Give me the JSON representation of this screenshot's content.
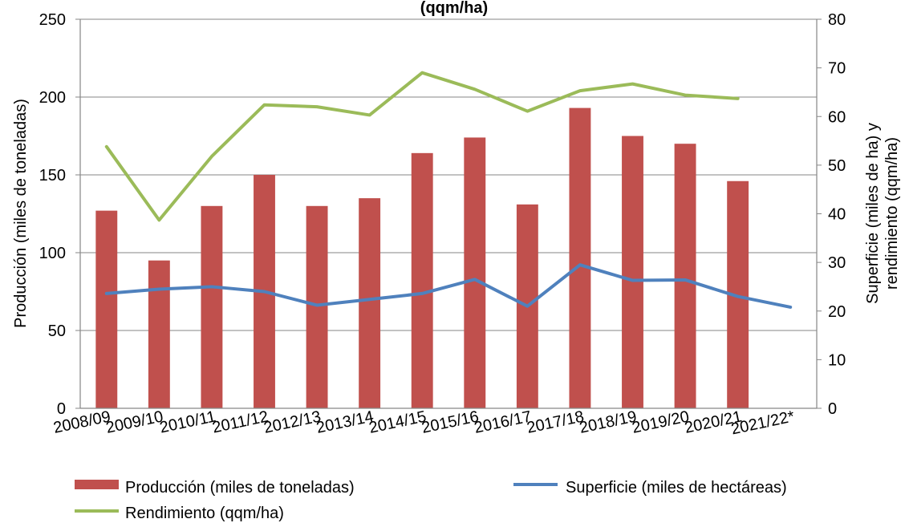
{
  "chart_data": {
    "type": "bar",
    "title": "(qqm/ha)",
    "categories": [
      "2008/09",
      "2009/10",
      "2010/11",
      "2011/12",
      "2012/13",
      "2013/14",
      "2014/15",
      "2015/16",
      "2016/17",
      "2017/18",
      "2018/19",
      "2019/20",
      "2020/21",
      "2021/22*"
    ],
    "y_left": {
      "label": "Producción (miles de toneladas)",
      "range": [
        0,
        250
      ],
      "ticks": [
        0,
        50,
        100,
        150,
        200,
        250
      ]
    },
    "y_right": {
      "label_line1": "Superficie (miles de ha) y",
      "label_line2": "rendimiento (qqm/ha)",
      "range": [
        0,
        80
      ],
      "ticks": [
        0,
        10,
        20,
        30,
        40,
        50,
        60,
        70,
        80
      ]
    },
    "grid": "horizontal",
    "legend_position": "bottom",
    "series": [
      {
        "name": "Producción (miles de toneladas)",
        "kind": "bar",
        "axis": "left",
        "color": "#c0504d",
        "values": [
          127,
          95,
          130,
          150,
          130,
          135,
          164,
          174,
          131,
          193,
          175,
          170,
          146,
          null
        ]
      },
      {
        "name": "Superficie (miles de hectáreas)",
        "kind": "line",
        "axis": "right",
        "color": "#4f81bd",
        "values": [
          23.6,
          24.5,
          25.0,
          24.0,
          21.2,
          22.4,
          23.6,
          26.5,
          21.0,
          29.5,
          26.3,
          26.4,
          23.0,
          20.8
        ]
      },
      {
        "name": "Rendimiento (qqm/ha)",
        "kind": "line",
        "axis": "right",
        "color": "#9bbb59",
        "values": [
          53.8,
          38.7,
          51.8,
          62.4,
          62.0,
          60.3,
          69.0,
          65.6,
          61.1,
          65.3,
          66.7,
          64.4,
          63.7,
          null
        ]
      }
    ]
  }
}
